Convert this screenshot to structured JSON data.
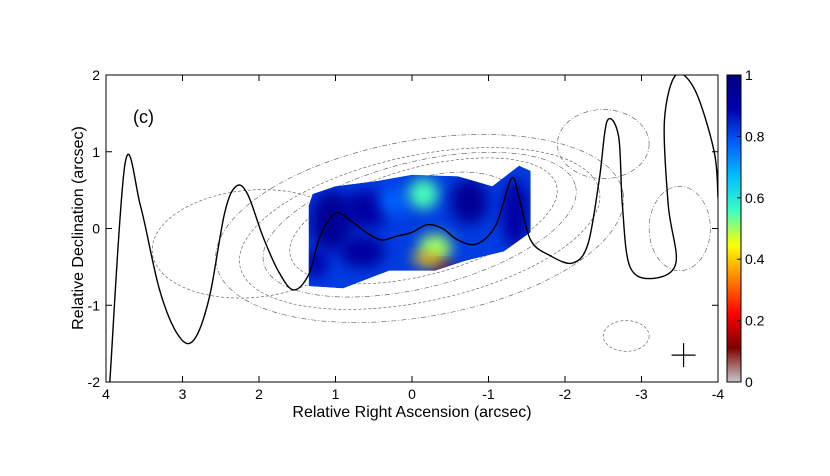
{
  "chart_data": {
    "type": "heatmap",
    "panel_label": "(c)",
    "xlabel": "Relative Right Ascension (arcsec)",
    "ylabel": "Relative Declination (arcsec)",
    "xlim": [
      4,
      -4
    ],
    "ylim": [
      -2,
      2
    ],
    "x_ticks": [
      4,
      3,
      2,
      1,
      0,
      -1,
      -2,
      -3,
      -4
    ],
    "x_tick_labels": [
      "4",
      "3",
      "2",
      "1",
      "0",
      "-1",
      "-2",
      "-3",
      "-4"
    ],
    "y_ticks": [
      2,
      1,
      0,
      -1,
      -2
    ],
    "y_tick_labels": [
      "2",
      "1",
      "0",
      "-1",
      "-2"
    ],
    "colorbar": {
      "range": [
        0,
        1
      ],
      "ticks": [
        1,
        0.8,
        0.6,
        0.4,
        0.2,
        0
      ],
      "tick_labels": [
        "1",
        "0.8",
        "0.6",
        "0.4",
        "0.2",
        "0"
      ],
      "colormap": [
        "#c8c8c8",
        "#7f0000",
        "#ff0000",
        "#ff8000",
        "#ffff00",
        "#40ffc0",
        "#00c0ff",
        "#0060ff",
        "#0000b0",
        "#00007f"
      ]
    },
    "helix_curve": [
      [
        3.95,
        -2.0
      ],
      [
        3.75,
        0.85
      ],
      [
        3.55,
        0.3
      ],
      [
        3.3,
        -0.8
      ],
      [
        3.05,
        -1.4
      ],
      [
        2.85,
        -1.45
      ],
      [
        2.65,
        -0.9
      ],
      [
        2.45,
        0.2
      ],
      [
        2.3,
        0.55
      ],
      [
        2.15,
        0.45
      ],
      [
        1.95,
        -0.1
      ],
      [
        1.75,
        -0.55
      ],
      [
        1.55,
        -0.8
      ],
      [
        1.35,
        -0.6
      ],
      [
        1.2,
        -0.1
      ],
      [
        1.0,
        0.2
      ],
      [
        0.8,
        0.1
      ],
      [
        0.6,
        -0.05
      ],
      [
        0.4,
        -0.15
      ],
      [
        0.2,
        -0.1
      ],
      [
        0.0,
        -0.05
      ],
      [
        -0.2,
        0.05
      ],
      [
        -0.4,
        0.0
      ],
      [
        -0.6,
        -0.15
      ],
      [
        -0.85,
        -0.2
      ],
      [
        -1.1,
        0.05
      ],
      [
        -1.3,
        0.65
      ],
      [
        -1.4,
        0.4
      ],
      [
        -1.55,
        -0.15
      ],
      [
        -1.8,
        -0.35
      ],
      [
        -2.1,
        -0.45
      ],
      [
        -2.3,
        -0.2
      ],
      [
        -2.45,
        0.65
      ],
      [
        -2.55,
        1.4
      ],
      [
        -2.7,
        1.2
      ],
      [
        -2.75,
        0.3
      ],
      [
        -2.85,
        -0.5
      ],
      [
        -3.15,
        -0.65
      ],
      [
        -3.45,
        -0.45
      ],
      [
        -3.35,
        0.3
      ],
      [
        -3.3,
        1.4
      ],
      [
        -3.45,
        2.0
      ],
      [
        -3.7,
        1.8
      ],
      [
        -3.95,
        1.0
      ],
      [
        -4.0,
        0.4
      ]
    ],
    "intensity_region": [
      [
        1.35,
        0.3
      ],
      [
        1.35,
        -0.75
      ],
      [
        0.9,
        -0.78
      ],
      [
        0.3,
        -0.55
      ],
      [
        -0.3,
        -0.55
      ],
      [
        -0.7,
        -0.42
      ],
      [
        -1.2,
        -0.3
      ],
      [
        -1.55,
        -0.05
      ],
      [
        -1.55,
        0.75
      ],
      [
        -1.4,
        0.82
      ],
      [
        -1.05,
        0.55
      ],
      [
        -0.6,
        0.68
      ],
      [
        0.0,
        0.7
      ],
      [
        0.45,
        0.62
      ],
      [
        1.0,
        0.55
      ],
      [
        1.3,
        0.45
      ]
    ],
    "intensity_blobs": [
      {
        "x": 1.05,
        "y": 0.1,
        "rx": 0.28,
        "ry": 0.4,
        "value": 0.95
      },
      {
        "x": 0.6,
        "y": 0.25,
        "rx": 0.32,
        "ry": 0.25,
        "value": 0.92
      },
      {
        "x": 0.25,
        "y": 0.35,
        "rx": 0.18,
        "ry": 0.2,
        "value": 0.78
      },
      {
        "x": -0.15,
        "y": 0.45,
        "rx": 0.2,
        "ry": 0.2,
        "value": 0.55
      },
      {
        "x": -0.75,
        "y": 0.35,
        "rx": 0.25,
        "ry": 0.3,
        "value": 0.95
      },
      {
        "x": -1.35,
        "y": 0.2,
        "rx": 0.18,
        "ry": 0.45,
        "value": 0.92
      },
      {
        "x": 0.65,
        "y": -0.3,
        "rx": 0.3,
        "ry": 0.22,
        "value": 0.93
      },
      {
        "x": -0.3,
        "y": -0.25,
        "rx": 0.22,
        "ry": 0.18,
        "value": 0.5
      },
      {
        "x": -0.4,
        "y": -0.5,
        "rx": 0.15,
        "ry": 0.07,
        "value": 0.12
      },
      {
        "x": -0.2,
        "y": -0.4,
        "rx": 0.2,
        "ry": 0.08,
        "value": 0.38
      },
      {
        "x": 1.25,
        "y": -0.45,
        "rx": 0.15,
        "ry": 0.2,
        "value": 0.9
      }
    ],
    "contours": [
      {
        "cx": -0.1,
        "cy": 0.0,
        "rx": 2.7,
        "ry": 1.15,
        "rot": -10
      },
      {
        "cx": -0.1,
        "cy": 0.0,
        "rx": 2.4,
        "ry": 0.95,
        "rot": -12
      },
      {
        "cx": -0.1,
        "cy": 0.05,
        "rx": 2.1,
        "ry": 0.82,
        "rot": -14
      },
      {
        "cx": -0.15,
        "cy": 0.1,
        "rx": 1.8,
        "ry": 0.7,
        "rot": -15
      },
      {
        "cx": -0.2,
        "cy": 0.12,
        "rx": 1.2,
        "ry": 0.55,
        "rot": -15
      },
      {
        "cx": -0.25,
        "cy": 0.12,
        "rx": 0.9,
        "ry": 0.42,
        "rot": -14
      },
      {
        "cx": -0.3,
        "cy": 0.12,
        "rx": 0.65,
        "ry": 0.32,
        "rot": -14
      },
      {
        "cx": -0.35,
        "cy": 0.12,
        "rx": 0.45,
        "ry": 0.22,
        "rot": -14
      },
      {
        "cx": -2.5,
        "cy": 1.1,
        "rx": 0.6,
        "ry": 0.45,
        "rot": 0
      },
      {
        "cx": 2.1,
        "cy": -0.2,
        "rx": 1.3,
        "ry": 0.7,
        "rot": -5
      },
      {
        "cx": -3.5,
        "cy": 0.0,
        "rx": 0.4,
        "ry": 0.55,
        "rot": 0
      },
      {
        "cx": -2.8,
        "cy": -1.4,
        "rx": 0.3,
        "ry": 0.2,
        "rot": 0
      }
    ],
    "beam_cross": {
      "x": -3.55,
      "y": -1.65
    }
  }
}
